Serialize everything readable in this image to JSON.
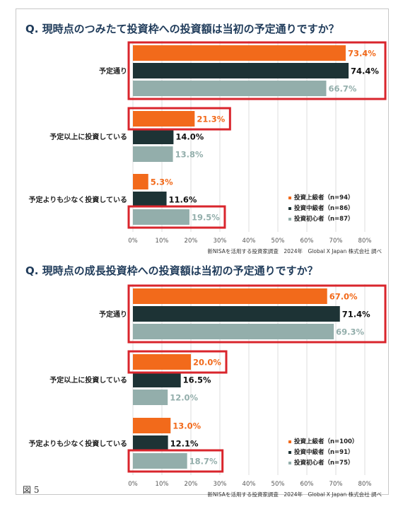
{
  "figure_label": "図 5",
  "colors": {
    "advanced": "#f26a1b",
    "intermediate": "#1d3335",
    "beginner": "#93aeab",
    "highlight": "#d9252c",
    "title": "#1f3b5a",
    "grid": "#dddddd"
  },
  "chart_data": [
    {
      "type": "bar",
      "orientation": "horizontal",
      "title": "Q. 現時点のつみたて投資枠への投資額は当初の予定通りですか？",
      "categories": [
        "予定通り",
        "予定以上に投資している",
        "予定よりも少なく投資している"
      ],
      "series": [
        {
          "name": "投資上級者（n=94）",
          "values": [
            73.4,
            21.3,
            5.3
          ],
          "labels": [
            "73.4%",
            "21.3%",
            "5.3%"
          ]
        },
        {
          "name": "投資中級者（n=86）",
          "values": [
            74.4,
            14.0,
            11.6
          ],
          "labels": [
            "74.4%",
            "14.0%",
            "11.6%"
          ]
        },
        {
          "name": "投資初心者（n=87）",
          "values": [
            66.7,
            13.8,
            19.5
          ],
          "labels": [
            "66.7%",
            "13.8%",
            "19.5%"
          ]
        }
      ],
      "xlim": [
        0,
        80
      ],
      "xticks": [
        "0%",
        "10%",
        "20%",
        "30%",
        "40%",
        "50%",
        "60%",
        "70%",
        "80%"
      ],
      "grid": true,
      "legend_position": "bottom-right",
      "highlights": [
        {
          "category": 0,
          "series": [
            0,
            1,
            2
          ]
        },
        {
          "category": 1,
          "series": [
            0
          ]
        },
        {
          "category": 2,
          "series": [
            2
          ]
        }
      ],
      "source": "新NISAを活用する投資家調査　2024年　Global X Japan 株式会社 調べ"
    },
    {
      "type": "bar",
      "orientation": "horizontal",
      "title": "Q. 現時点の成長投資枠への投資額は当初の予定通りですか？",
      "categories": [
        "予定通り",
        "予定以上に投資している",
        "予定よりも少なく投資している"
      ],
      "series": [
        {
          "name": "投資上級者（n=100）",
          "values": [
            67.0,
            20.0,
            13.0
          ],
          "labels": [
            "67.0%",
            "20.0%",
            "13.0%"
          ]
        },
        {
          "name": "投資中級者（n=91）",
          "values": [
            71.4,
            16.5,
            12.1
          ],
          "labels": [
            "71.4%",
            "16.5%",
            "12.1%"
          ]
        },
        {
          "name": "投資初心者（n=75）",
          "values": [
            69.3,
            12.0,
            18.7
          ],
          "labels": [
            "69.3%",
            "12.0%",
            "18.7%"
          ]
        }
      ],
      "xlim": [
        0,
        80
      ],
      "xticks": [
        "0%",
        "10%",
        "20%",
        "30%",
        "40%",
        "50%",
        "60%",
        "70%",
        "80%"
      ],
      "grid": true,
      "legend_position": "bottom-right",
      "highlights": [
        {
          "category": 0,
          "series": [
            0,
            1,
            2
          ]
        },
        {
          "category": 1,
          "series": [
            0
          ]
        },
        {
          "category": 2,
          "series": [
            2
          ]
        }
      ],
      "source": "新NISAを活用する投資家調査　2024年　Global X Japan 株式会社 調べ"
    }
  ]
}
